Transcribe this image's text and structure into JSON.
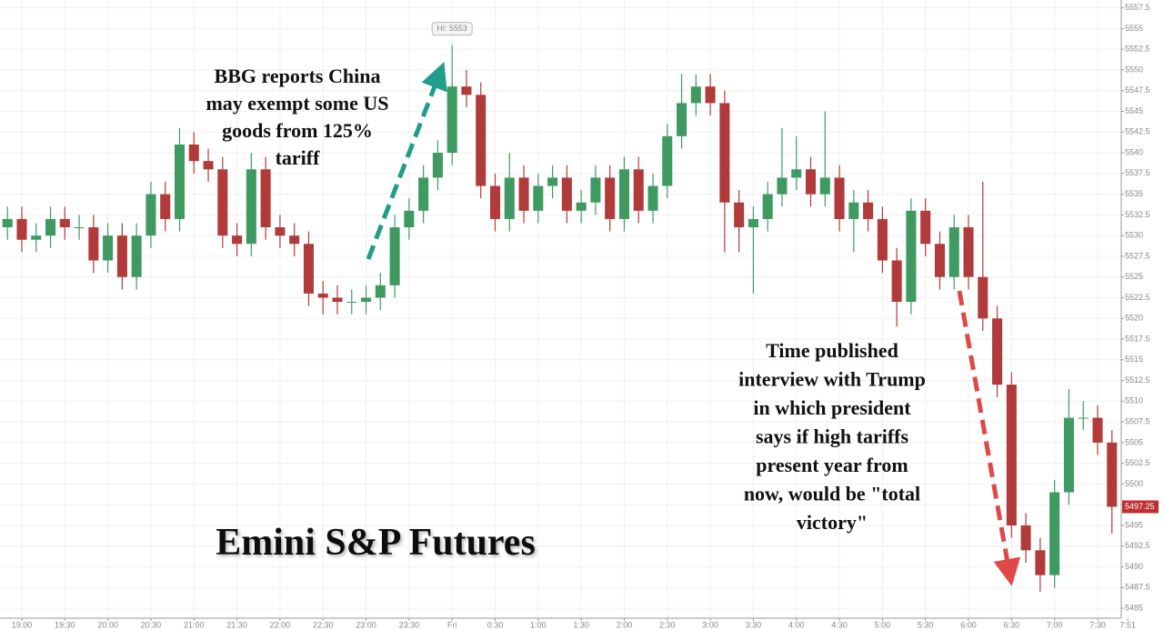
{
  "chart_data": {
    "type": "candlestick",
    "title": "Emini S&P Futures",
    "annotations": [
      {
        "lines": [
          "BBG reports China",
          "may exempt some US",
          "goods from 125%",
          "tariff"
        ],
        "color": "#1f9e89"
      },
      {
        "lines": [
          "Time published",
          "interview with Trump",
          "in which president",
          "says if high tariffs",
          "present year from",
          "now, would be \"total",
          "victory\""
        ],
        "color": "#e04848"
      }
    ],
    "high_label": "Hi: 5553",
    "up_color": "#3f9a62",
    "down_color": "#b13a3a",
    "xlim": [
      -15.2,
      766.5
    ],
    "ylim": [
      5483.8,
      5558.45
    ],
    "grid": true,
    "xticks": [
      {
        "value": 0,
        "label": "19:00"
      },
      {
        "value": 30,
        "label": "19:30"
      },
      {
        "value": 60,
        "label": "20:00"
      },
      {
        "value": 90,
        "label": "20:30"
      },
      {
        "value": 120,
        "label": "21:00"
      },
      {
        "value": 150,
        "label": "21:30"
      },
      {
        "value": 180,
        "label": "22:00"
      },
      {
        "value": 210,
        "label": "22:30"
      },
      {
        "value": 240,
        "label": "23:00"
      },
      {
        "value": 270,
        "label": "23:30"
      },
      {
        "value": 300,
        "label": "Fri"
      },
      {
        "value": 330,
        "label": "0:30"
      },
      {
        "value": 360,
        "label": "1:00"
      },
      {
        "value": 390,
        "label": "1:30"
      },
      {
        "value": 420,
        "label": "2:00"
      },
      {
        "value": 450,
        "label": "2:30"
      },
      {
        "value": 480,
        "label": "3:00"
      },
      {
        "value": 510,
        "label": "3:30"
      },
      {
        "value": 540,
        "label": "4:00"
      },
      {
        "value": 570,
        "label": "4:30"
      },
      {
        "value": 600,
        "label": "5:00"
      },
      {
        "value": 630,
        "label": "5:30"
      },
      {
        "value": 660,
        "label": "6:00"
      },
      {
        "value": 690,
        "label": "6:30"
      },
      {
        "value": 720,
        "label": "7:00"
      },
      {
        "value": 750,
        "label": "7:30"
      },
      {
        "value": 771,
        "label": "7:51"
      }
    ],
    "yticks": [
      5485,
      5487.5,
      5490,
      5492.5,
      5495,
      5497.5,
      5500,
      5502.5,
      5505,
      5507.5,
      5510,
      5512.5,
      5515,
      5517.5,
      5520,
      5522.5,
      5525,
      5527.5,
      5530,
      5532.5,
      5535,
      5537.5,
      5540,
      5542.5,
      5545,
      5547.5,
      5550,
      5552.5,
      5555,
      5557.5
    ],
    "x": [
      -10,
      0,
      10,
      20,
      30,
      40,
      50,
      60,
      70,
      80,
      90,
      100,
      110,
      120,
      130,
      140,
      150,
      160,
      170,
      180,
      190,
      200,
      210,
      220,
      230,
      240,
      250,
      260,
      270,
      280,
      290,
      300,
      310,
      320,
      330,
      340,
      350,
      360,
      370,
      380,
      390,
      400,
      410,
      420,
      430,
      440,
      450,
      460,
      470,
      480,
      490,
      500,
      510,
      520,
      530,
      540,
      550,
      560,
      570,
      580,
      590,
      600,
      610,
      620,
      630,
      640,
      650,
      660,
      670,
      680,
      690,
      700,
      710,
      720,
      730,
      740,
      750,
      760
    ],
    "open": [
      5531,
      5532,
      5529.5,
      5530,
      5532,
      5531,
      5531,
      5527,
      5530,
      5525,
      5530,
      5535,
      5532,
      5541,
      5539,
      5538,
      5530,
      5529,
      5538,
      5531,
      5530,
      5529,
      5523,
      5522.5,
      5522,
      5522,
      5522.5,
      5524,
      5531,
      5533,
      5537,
      5540,
      5548,
      5547,
      5536,
      5532,
      5537,
      5533,
      5536,
      5537,
      5533,
      5534,
      5537,
      5532,
      5538,
      5533,
      5536,
      5542,
      5546,
      5548,
      5546,
      5534,
      5531,
      5532,
      5535,
      5537,
      5538,
      5535,
      5537,
      5532,
      5534,
      5532,
      5527,
      5522,
      5533,
      5529,
      5525,
      5531,
      5525,
      5520,
      5512,
      5495,
      5492,
      5489,
      5499,
      5508,
      5508,
      5505
    ],
    "high": [
      5533.5,
      5533.5,
      5531.5,
      5533.5,
      5533.5,
      5532.5,
      5532.5,
      5531.5,
      5531.5,
      5531.5,
      5536.5,
      5536.5,
      5543,
      5542.5,
      5540.5,
      5539.5,
      5531.5,
      5540,
      5539.5,
      5532.5,
      5531.5,
      5530.5,
      5524.5,
      5524,
      5523.5,
      5524,
      5525.5,
      5532.5,
      5534.5,
      5538.5,
      5541.5,
      5553,
      5550,
      5548.5,
      5537.5,
      5540,
      5538.5,
      5537.5,
      5538.5,
      5538.5,
      5535.5,
      5538.5,
      5538.5,
      5539.5,
      5539.5,
      5537.5,
      5543.5,
      5549.5,
      5549.5,
      5549.5,
      5547.5,
      5535.5,
      5533.5,
      5536.5,
      5543,
      5542,
      5539.5,
      5545,
      5538.5,
      5535.5,
      5535.5,
      5533.5,
      5528.5,
      5534.5,
      5534.5,
      5530.5,
      5532.5,
      5532.5,
      5536.5,
      5521.5,
      5513.5,
      5496.5,
      5493.5,
      5500.5,
      5511.5,
      5510,
      5509.5,
      5506.5
    ],
    "low": [
      5529.5,
      5528,
      5528,
      5528.5,
      5529.5,
      5529.5,
      5525.5,
      5525.5,
      5523.5,
      5523.5,
      5528.5,
      5530.5,
      5530.5,
      5537.5,
      5536.5,
      5528.5,
      5527.5,
      5527.5,
      5529.5,
      5528.5,
      5527.5,
      5521.5,
      5520.5,
      5520.5,
      5520.5,
      5520.5,
      5521,
      5522.5,
      5529.5,
      5531.5,
      5535.5,
      5538.5,
      5545.5,
      5534.5,
      5530.5,
      5530.5,
      5531.5,
      5531.5,
      5534.5,
      5531.5,
      5531.5,
      5532.5,
      5530.5,
      5530.5,
      5531.5,
      5531.5,
      5534.5,
      5540.5,
      5544.5,
      5544.5,
      5528,
      5528,
      5523,
      5530.5,
      5533.5,
      5535.5,
      5533.5,
      5533.5,
      5530.5,
      5528,
      5530.5,
      5525.5,
      5519,
      5520.5,
      5527.5,
      5523.5,
      5523.5,
      5523.5,
      5518.5,
      5510.5,
      5493.5,
      5490.5,
      5487,
      5487.5,
      5497.5,
      5506.5,
      5503.5,
      5494
    ],
    "close": [
      5532,
      5529.5,
      5530,
      5532,
      5531,
      5531,
      5527,
      5530,
      5525,
      5530,
      5535,
      5532,
      5541,
      5539,
      5538,
      5530,
      5529,
      5538,
      5531,
      5530,
      5529,
      5523,
      5522.5,
      5522,
      5522,
      5522.5,
      5524,
      5531,
      5533,
      5537,
      5540,
      5548,
      5547,
      5536,
      5532,
      5537,
      5533,
      5536,
      5537,
      5533,
      5534,
      5537,
      5532,
      5538,
      5533,
      5536,
      5542,
      5546,
      5548,
      5546,
      5534,
      5531,
      5532,
      5535,
      5537,
      5538,
      5535,
      5537,
      5532,
      5534,
      5532,
      5527,
      5522,
      5533,
      5529,
      5525,
      5531,
      5525,
      5520,
      5512,
      5495,
      5492,
      5489,
      5499,
      5508,
      5508,
      5505,
      5497.25
    ]
  }
}
